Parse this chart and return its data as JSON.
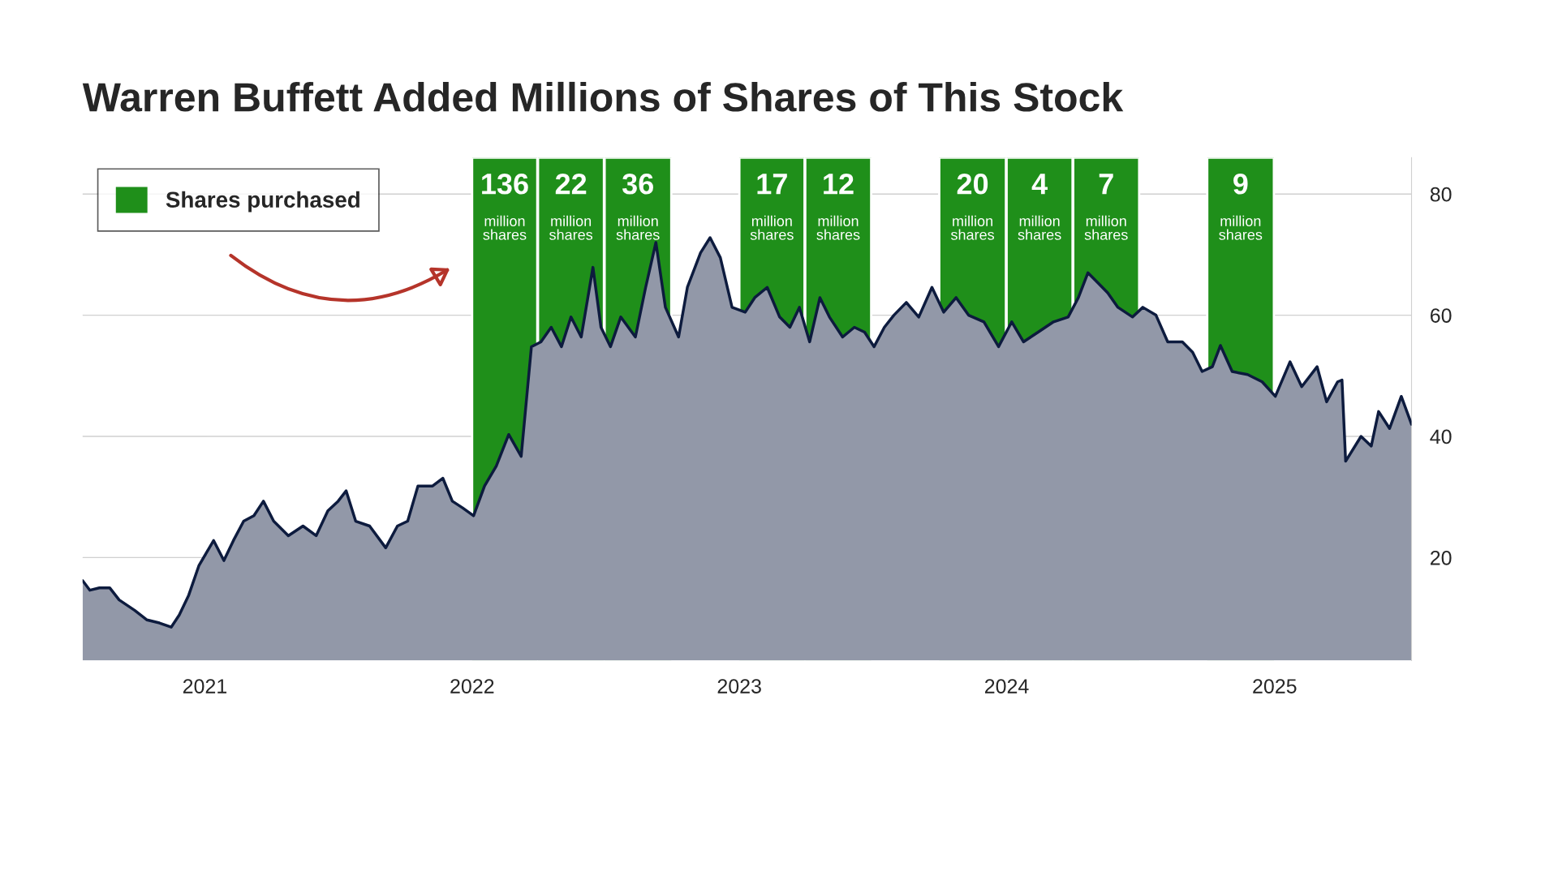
{
  "chart_data": {
    "type": "area",
    "title": "Warren Buffett Added Millions of Shares of This Stock",
    "xlim": [
      "2020-07-18",
      "2025-07-07"
    ],
    "ylim": [
      3,
      86
    ],
    "xticks": [
      {
        "value": "2021-01-01",
        "label": "2021"
      },
      {
        "value": "2022-01-01",
        "label": "2022"
      },
      {
        "value": "2023-01-01",
        "label": "2023"
      },
      {
        "value": "2024-01-01",
        "label": "2024"
      },
      {
        "value": "2025-01-01",
        "label": "2025"
      }
    ],
    "yticks": [
      20,
      40,
      60,
      80
    ],
    "grid": "y",
    "x": [
      "2020-07-18",
      "2020-07-28",
      "2020-08-10",
      "2020-08-24",
      "2020-09-06",
      "2020-09-27",
      "2020-10-14",
      "2020-10-31",
      "2020-11-16",
      "2020-11-27",
      "2020-12-10",
      "2020-12-24",
      "2021-01-13",
      "2021-01-27",
      "2021-02-09",
      "2021-02-23",
      "2021-03-09",
      "2021-03-22",
      "2021-04-05",
      "2021-04-25",
      "2021-05-15",
      "2021-06-02",
      "2021-06-18",
      "2021-07-02",
      "2021-07-13",
      "2021-07-26",
      "2021-08-14",
      "2021-09-05",
      "2021-09-21",
      "2021-10-05",
      "2021-10-19",
      "2021-11-08",
      "2021-11-22",
      "2021-12-05",
      "2021-12-19",
      "2022-01-03",
      "2022-01-18",
      "2022-02-03",
      "2022-02-20",
      "2022-03-09",
      "2022-03-23",
      "2022-04-05",
      "2022-04-19",
      "2022-05-03",
      "2022-05-16",
      "2022-05-30",
      "2022-06-15",
      "2022-06-26",
      "2022-07-09",
      "2022-07-23",
      "2022-08-12",
      "2022-08-26",
      "2022-09-09",
      "2022-09-22",
      "2022-10-10",
      "2022-10-22",
      "2022-11-09",
      "2022-11-22",
      "2022-12-06",
      "2022-12-22",
      "2023-01-09",
      "2023-01-22",
      "2023-02-08",
      "2023-02-25",
      "2023-03-11",
      "2023-03-24",
      "2023-04-07",
      "2023-04-21",
      "2023-05-04",
      "2023-05-22",
      "2023-06-07",
      "2023-06-21",
      "2023-07-04",
      "2023-07-18",
      "2023-07-31",
      "2023-08-17",
      "2023-09-03",
      "2023-09-21",
      "2023-10-07",
      "2023-10-24",
      "2023-11-10",
      "2023-12-01",
      "2023-12-21",
      "2024-01-08",
      "2024-01-24",
      "2024-02-13",
      "2024-03-05",
      "2024-03-25",
      "2024-04-08",
      "2024-04-21",
      "2024-05-05",
      "2024-05-18",
      "2024-06-01",
      "2024-06-21",
      "2024-07-05",
      "2024-07-23",
      "2024-08-08",
      "2024-08-28",
      "2024-09-11",
      "2024-09-24",
      "2024-10-08",
      "2024-10-19",
      "2024-11-04",
      "2024-11-25",
      "2024-12-15",
      "2025-01-02",
      "2025-01-22",
      "2025-02-07",
      "2025-02-28",
      "2025-03-13",
      "2025-03-28",
      "2025-04-03",
      "2025-04-08",
      "2025-04-29",
      "2025-05-13",
      "2025-05-23",
      "2025-06-07",
      "2025-06-23",
      "2025-07-07"
    ],
    "series": [
      {
        "color": "#0d1b3e",
        "values": [
          16.2,
          14.6,
          15,
          15,
          13,
          11.3,
          9.7,
          9.2,
          8.5,
          10.5,
          13.8,
          18.7,
          22.8,
          19.5,
          22.8,
          26,
          26.9,
          29.3,
          26,
          23.6,
          25.2,
          23.6,
          27.7,
          29.3,
          31,
          26,
          25.2,
          21.6,
          25.2,
          26,
          31.8,
          31.8,
          33.1,
          29.3,
          28.2,
          26.9,
          31.8,
          35.1,
          40.3,
          36.7,
          54.8,
          55.6,
          58,
          54.8,
          59.7,
          56.4,
          67.9,
          58,
          54.8,
          59.7,
          56.4,
          64.6,
          72,
          61.3,
          56.4,
          64.6,
          70.3,
          72.8,
          69.5,
          61.3,
          60.5,
          62.9,
          64.6,
          59.7,
          58,
          61.3,
          55.6,
          62.9,
          59.7,
          56.4,
          58,
          57.2,
          54.8,
          58,
          60,
          62.1,
          59.7,
          64.6,
          60.5,
          62.9,
          60,
          58.9,
          54.8,
          58.9,
          55.6,
          57.2,
          58.9,
          59.7,
          62.9,
          67,
          65.3,
          63.7,
          61.3,
          59.7,
          61.3,
          60,
          55.6,
          55.6,
          53.9,
          50.7,
          51.5,
          55,
          50.7,
          50.2,
          49,
          46.6,
          52.3,
          48.2,
          51.5,
          45.7,
          49,
          49.3,
          35.9,
          40,
          38.4,
          44.1,
          41.3,
          46.6,
          42
        ]
      }
    ],
    "bands": [
      {
        "axis": "x",
        "from": "2022-01-01",
        "to": "2022-03-31",
        "label": "136 million shares",
        "color": "#1f8f1a"
      },
      {
        "axis": "x",
        "from": "2022-04-01",
        "to": "2022-06-30",
        "label": "22 million shares",
        "color": "#1f8f1a"
      },
      {
        "axis": "x",
        "from": "2022-07-01",
        "to": "2022-09-30",
        "label": "36 million shares",
        "color": "#1f8f1a"
      },
      {
        "axis": "x",
        "from": "2023-01-01",
        "to": "2023-03-31",
        "label": "17 million shares",
        "color": "#1f8f1a"
      },
      {
        "axis": "x",
        "from": "2023-04-01",
        "to": "2023-06-30",
        "label": "12 million shares",
        "color": "#1f8f1a"
      },
      {
        "axis": "x",
        "from": "2023-10-01",
        "to": "2023-12-31",
        "label": "20 million shares",
        "color": "#1f8f1a"
      },
      {
        "axis": "x",
        "from": "2024-01-01",
        "to": "2024-03-31",
        "label": "4 million shares",
        "color": "#1f8f1a"
      },
      {
        "axis": "x",
        "from": "2024-04-01",
        "to": "2024-06-30",
        "label": "7 million shares",
        "color": "#1f8f1a"
      },
      {
        "axis": "x",
        "from": "2024-10-01",
        "to": "2024-12-31",
        "label": "9 million shares",
        "color": "#1f8f1a"
      }
    ],
    "annotations": [
      "Shares purchased"
    ]
  }
}
